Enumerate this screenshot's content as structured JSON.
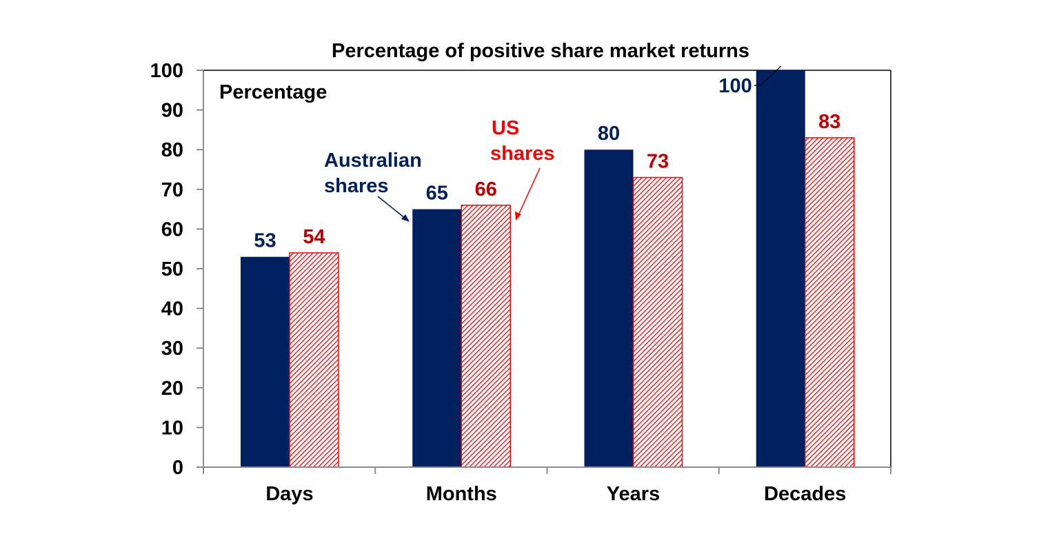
{
  "chart_data": {
    "type": "bar",
    "title": "Percentage of positive share market returns",
    "inner_label": "Percentage",
    "xlabel": "",
    "ylabel": "",
    "ylim": [
      0,
      100
    ],
    "yticks": [
      0,
      10,
      20,
      30,
      40,
      50,
      60,
      70,
      80,
      90,
      100
    ],
    "grid": false,
    "legend": "none (inline annotations with arrows)",
    "categories": [
      "Days",
      "Months",
      "Years",
      "Decades"
    ],
    "series": [
      {
        "name": "Australian shares",
        "annotation": [
          "Australian",
          "shares"
        ],
        "color": "#002060",
        "label_color": "#002060",
        "fill": "solid",
        "values": [
          53,
          65,
          80,
          100
        ]
      },
      {
        "name": "US shares",
        "annotation": [
          "US",
          "shares"
        ],
        "color": "#FF0000",
        "label_color": "#C00000",
        "annotation_color": "#FF0000",
        "fill": "diagonal-hatch",
        "values": [
          54,
          66,
          73,
          83
        ]
      }
    ]
  }
}
